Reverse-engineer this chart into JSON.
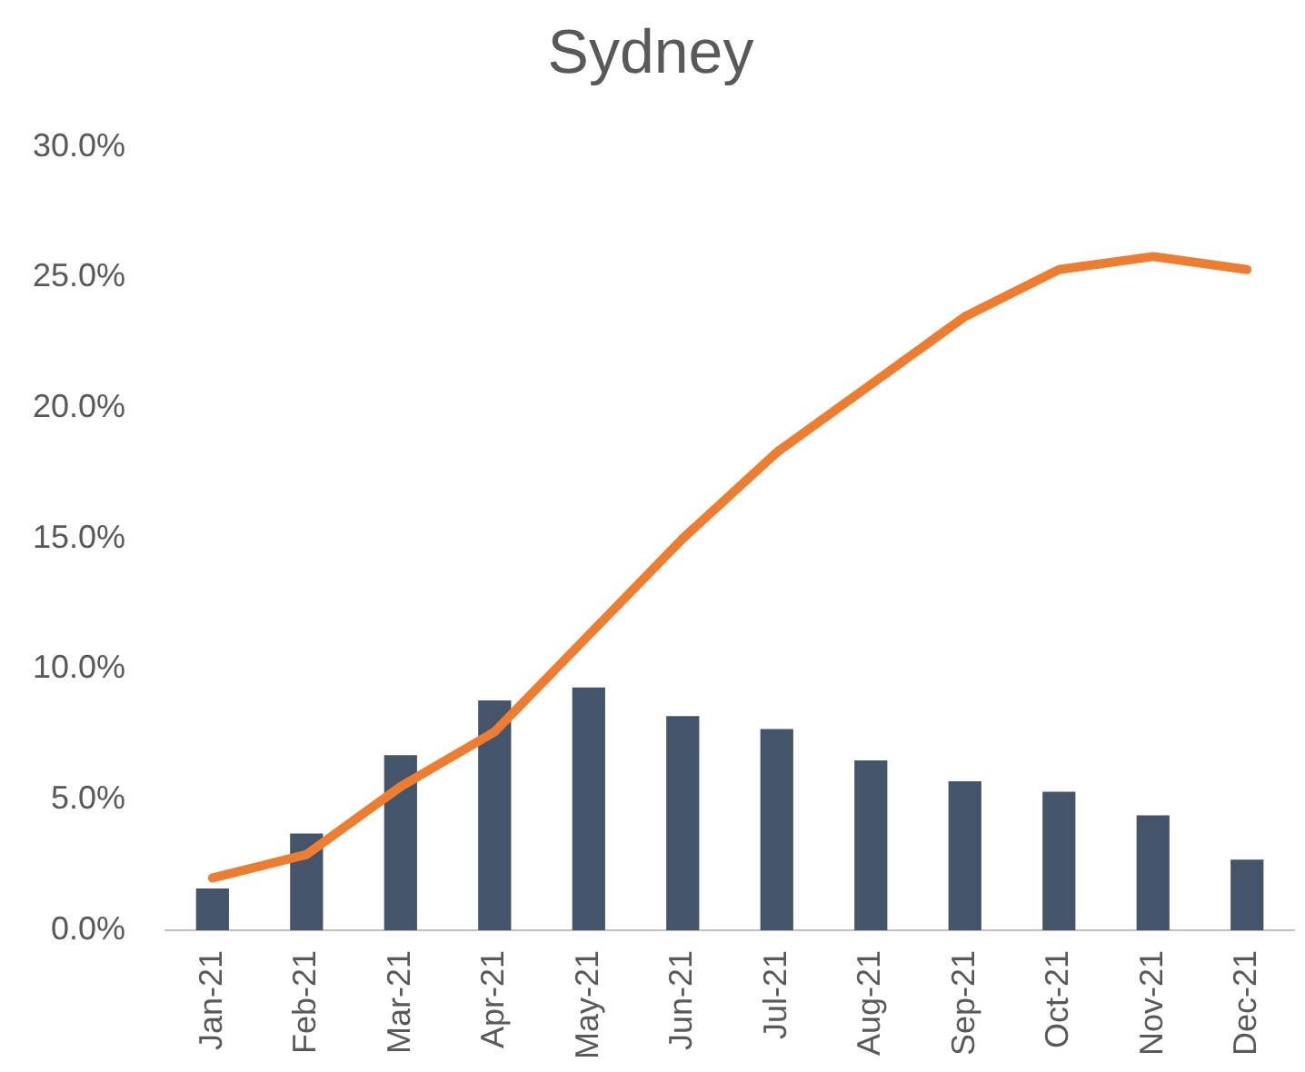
{
  "chart_data": {
    "type": "bar",
    "title": "Sydney",
    "categories": [
      "Jan-21",
      "Feb-21",
      "Mar-21",
      "Apr-21",
      "May-21",
      "Jun-21",
      "Jul-21",
      "Aug-21",
      "Sep-21",
      "Oct-21",
      "Nov-21",
      "Dec-21"
    ],
    "series": [
      {
        "color": "#44546a",
        "values": [
          1.6,
          3.7,
          6.7,
          8.8,
          9.3,
          8.2,
          7.7,
          6.5,
          5.7,
          5.3,
          4.4,
          2.7
        ]
      },
      {
        "type": "line",
        "color": "#ed7d31",
        "values": [
          2.0,
          2.9,
          5.5,
          7.6,
          11.3,
          15.0,
          18.3,
          20.9,
          23.5,
          25.3,
          25.8,
          25.3
        ]
      }
    ],
    "ylim": [
      0,
      30
    ],
    "yticks": [
      {
        "value": 0,
        "label": "0.0%"
      },
      {
        "value": 5,
        "label": "5.0%"
      },
      {
        "value": 10,
        "label": "10.0%"
      },
      {
        "value": 15,
        "label": "15.0%"
      },
      {
        "value": 20,
        "label": "20.0%"
      },
      {
        "value": 25,
        "label": "25.0%"
      },
      {
        "value": 30,
        "label": "30.0%"
      }
    ],
    "grid": false,
    "legend": false,
    "marker": "none"
  }
}
